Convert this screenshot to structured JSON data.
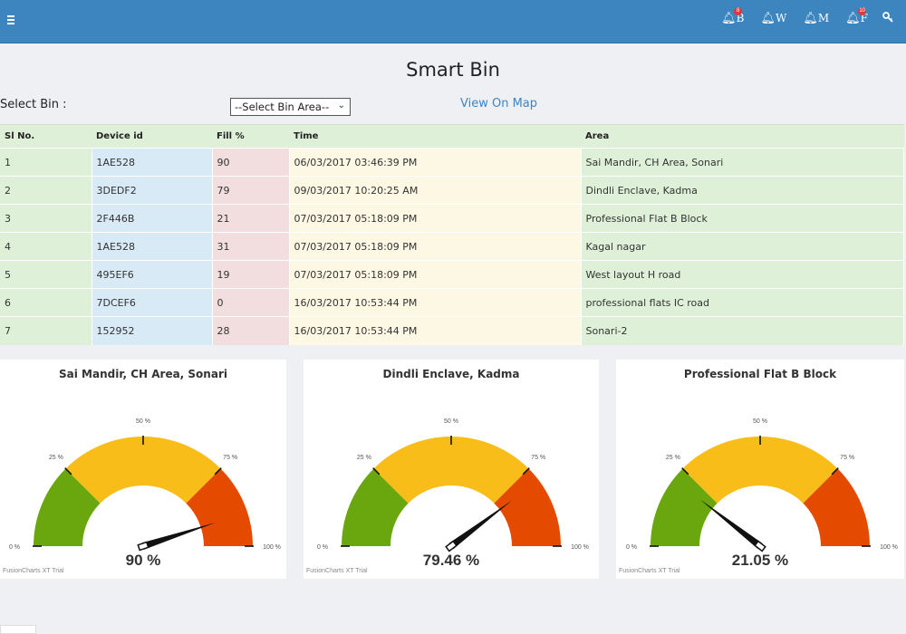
{
  "topbar": {
    "menu_icon": "hamburger-icon",
    "notifications": [
      {
        "letter": "B",
        "badge": "8",
        "icon": "bell-icon"
      },
      {
        "letter": "W",
        "badge": "",
        "icon": "bell-icon"
      },
      {
        "letter": "M",
        "badge": "",
        "icon": "bell-icon"
      },
      {
        "letter": "F",
        "badge": "10",
        "icon": "bell-icon"
      }
    ],
    "settings_icon": "key-icon"
  },
  "page": {
    "title": "Smart Bin",
    "select_label": "Select Bin :",
    "select_value": "--Select Bin Area--",
    "map_link": "View On Map"
  },
  "table": {
    "headers": [
      "Sl No.",
      "Device id",
      "Fill %",
      "Time",
      "Area"
    ],
    "rows": [
      [
        "1",
        "1AE528",
        "90",
        "06/03/2017 03:46:39 PM",
        "Sai Mandir, CH Area, Sonari"
      ],
      [
        "2",
        "3DEDF2",
        "79",
        "09/03/2017 10:20:25 AM",
        "Dindli Enclave, Kadma"
      ],
      [
        "3",
        "2F446B",
        "21",
        "07/03/2017 05:18:09 PM",
        "Professional Flat B Block"
      ],
      [
        "4",
        "1AE528",
        "31",
        "07/03/2017 05:18:09 PM",
        "Kagal nagar"
      ],
      [
        "5",
        "495EF6",
        "19",
        "07/03/2017 05:18:09 PM",
        "West layout H road"
      ],
      [
        "6",
        "7DCEF6",
        "0",
        "16/03/2017 10:53:44 PM",
        "professional flats IC road"
      ],
      [
        "7",
        "152952",
        "28",
        "16/03/2017 10:53:44 PM",
        "Sonari-2"
      ]
    ]
  },
  "gauges": [
    {
      "title": "Sai Mandir, CH Area, Sonari",
      "value": 90,
      "value_label": "90 %",
      "trial": "FusionCharts XT Trial"
    },
    {
      "title": "Dindli Enclave, Kadma",
      "value": 79.46,
      "value_label": "79.46 %",
      "trial": "FusionCharts XT Trial"
    },
    {
      "title": "Professional Flat B Block",
      "value": 21.05,
      "value_label": "21.05 %",
      "trial": "FusionCharts XT Trial"
    }
  ],
  "gauge_ticks": [
    "0 %",
    "25 %",
    "50 %",
    "75 %",
    "100 %"
  ],
  "colors": {
    "header_bar": "#3c85be",
    "gauge_green": "#6aa70f",
    "gauge_yellow": "#f8bd19",
    "gauge_red": "#e44a00"
  }
}
